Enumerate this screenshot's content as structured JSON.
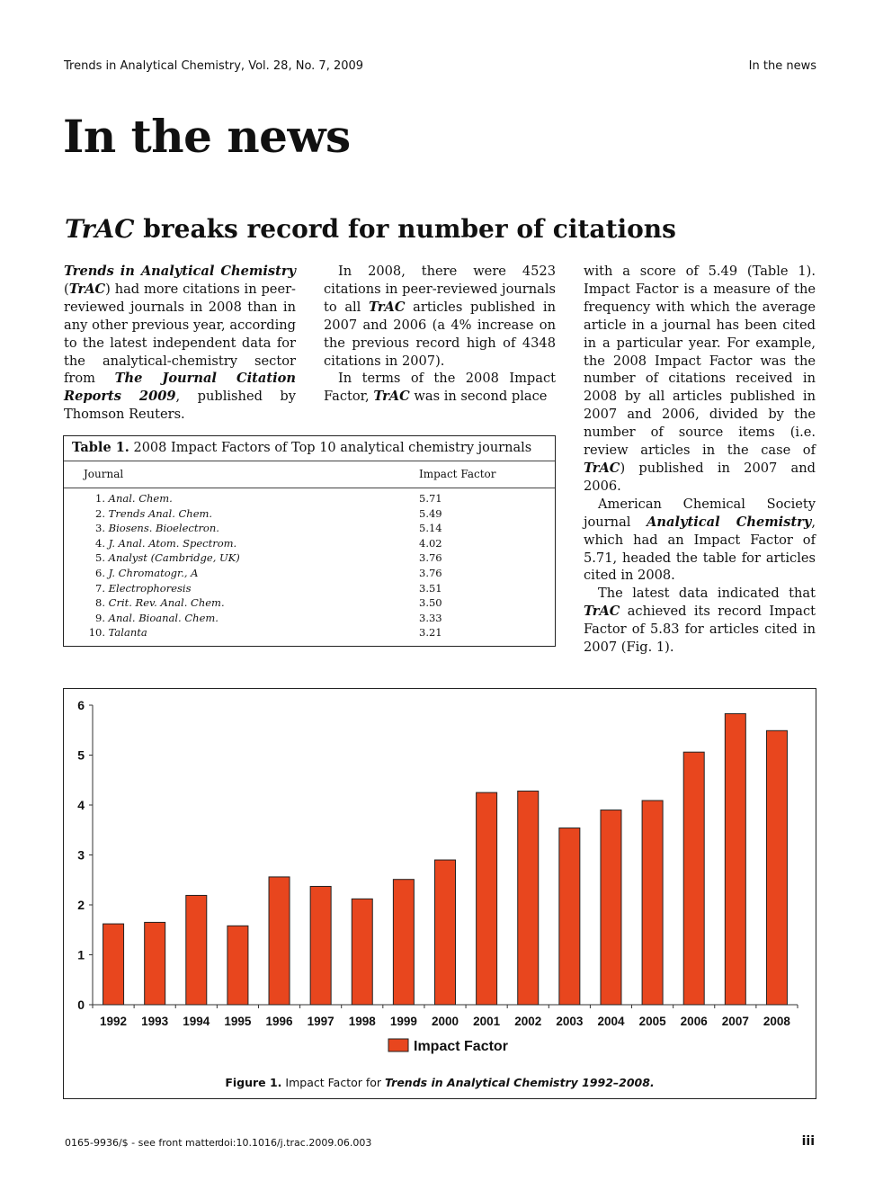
{
  "header": {
    "journal_line": "Trends in Analytical Chemistry, Vol. 28, No. 7, 2009",
    "section": "In the news"
  },
  "page_title": "In the news",
  "article": {
    "title_em": "TrAC",
    "title_rest": " breaks record for number of citations"
  },
  "col1": [
    {
      "t": "Trends in Analytical Chemistry",
      "s": "bi"
    },
    {
      "t": " ("
    },
    {
      "t": "TrAC",
      "s": "bi"
    },
    {
      "t": ") had more citations in peer-reviewed journals in 2008 than in any other previous year, according to the latest independent data for the analytical-chemistry sector from "
    },
    {
      "t": "The Journal Citation Reports 2009",
      "s": "bi"
    },
    {
      "t": ", published by Thomson Reuters."
    }
  ],
  "col2": [
    [
      {
        "t": "In 2008, there were 4523 citations in peer-reviewed journals to all "
      },
      {
        "t": "TrAC",
        "s": "bi"
      },
      {
        "t": " articles published in 2007 and 2006 (a 4% increase on the previous record high of 4348 citations in 2007)."
      }
    ],
    [
      {
        "t": "In terms of the 2008 Impact Factor, "
      },
      {
        "t": "TrAC",
        "s": "bi"
      },
      {
        "t": " was in second place"
      }
    ]
  ],
  "col3": [
    [
      {
        "t": "with a score of 5.49 (Table 1). Impact Factor is a measure of the frequency with which the average article in a journal has been cited in a particular year. For example, the 2008 Impact Factor was the number of citations received in 2008 by all articles published in 2007 and 2006, divided by the number of source items (i.e. review articles in the case of "
      },
      {
        "t": "TrAC",
        "s": "bi"
      },
      {
        "t": ") published in 2007 and 2006."
      }
    ],
    [
      {
        "t": "American Chemical Society journal "
      },
      {
        "t": "Analytical Chemistry",
        "s": "bi"
      },
      {
        "t": ", which had an Impact Factor of 5.71, headed the table for articles cited in 2008."
      }
    ],
    [
      {
        "t": "The latest data indicated that "
      },
      {
        "t": "TrAC",
        "s": "bi"
      },
      {
        "t": " achieved its record Impact Factor of 5.83 for articles cited in 2007 (Fig. 1)."
      }
    ]
  ],
  "table": {
    "caption_label": "Table 1.",
    "caption_text": " 2008 Impact Factors of Top 10 analytical chemistry journals",
    "col_journal": "Journal",
    "col_if": "Impact Factor",
    "rows": [
      {
        "num": "1.",
        "name": "Anal. Chem.",
        "value": "5.71"
      },
      {
        "num": "2.",
        "name": "Trends Anal. Chem.",
        "value": "5.49"
      },
      {
        "num": "3.",
        "name": "Biosens. Bioelectron.",
        "value": "5.14"
      },
      {
        "num": "4.",
        "name": "J. Anal. Atom. Spectrom.",
        "value": "4.02"
      },
      {
        "num": "5.",
        "name": "Analyst (Cambridge, UK)",
        "value": "3.76"
      },
      {
        "num": "6.",
        "name": "J. Chromatogr., A",
        "value": "3.76"
      },
      {
        "num": "7.",
        "name": "Electrophoresis",
        "value": "3.51"
      },
      {
        "num": "8.",
        "name": "Crit. Rev. Anal. Chem.",
        "value": "3.50"
      },
      {
        "num": "9.",
        "name": "Anal. Bioanal. Chem.",
        "value": "3.33"
      },
      {
        "num": "10.",
        "name": "Talanta",
        "value": "3.21"
      }
    ]
  },
  "chart_data": {
    "type": "bar",
    "categories": [
      "1992",
      "1993",
      "1994",
      "1995",
      "1996",
      "1997",
      "1998",
      "1999",
      "2000",
      "2001",
      "2002",
      "2003",
      "2004",
      "2005",
      "2006",
      "2007",
      "2008"
    ],
    "series": [
      {
        "name": "Impact Factor",
        "values": [
          1.62,
          1.65,
          2.19,
          1.58,
          2.56,
          2.37,
          2.12,
          2.51,
          2.9,
          4.25,
          4.28,
          3.54,
          3.9,
          4.09,
          5.06,
          5.83,
          5.49
        ]
      }
    ],
    "ylim": [
      0,
      6
    ],
    "yticks": [
      0,
      1,
      2,
      3,
      4,
      5,
      6
    ],
    "color": "#e8461e",
    "legend": "bottom",
    "grid": false
  },
  "figure": {
    "label": "Figure 1.",
    "text": " Impact Factor for ",
    "em": "Trends in Analytical Chemistry 1992–2008."
  },
  "footer": {
    "issn": "0165-9936/$ - see front matter",
    "doi": "doi:10.1016/j.trac.2009.06.003",
    "page": "iii"
  }
}
